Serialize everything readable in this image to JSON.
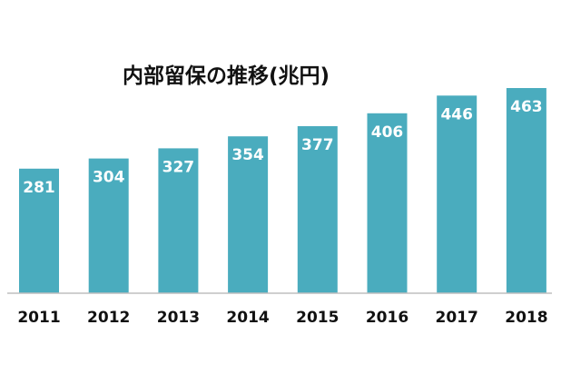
{
  "chart_data": {
    "type": "bar",
    "title": "内部留保の推移(兆円)",
    "categories": [
      "2011",
      "2012",
      "2013",
      "2014",
      "2015",
      "2016",
      "2017",
      "2018"
    ],
    "values": [
      281,
      304,
      327,
      354,
      377,
      406,
      446,
      463
    ],
    "ylim": [
      0,
      500
    ],
    "grid": false,
    "legend": "none",
    "bar_color": "#4aacbe",
    "axis_color": "#bfbfbf"
  }
}
